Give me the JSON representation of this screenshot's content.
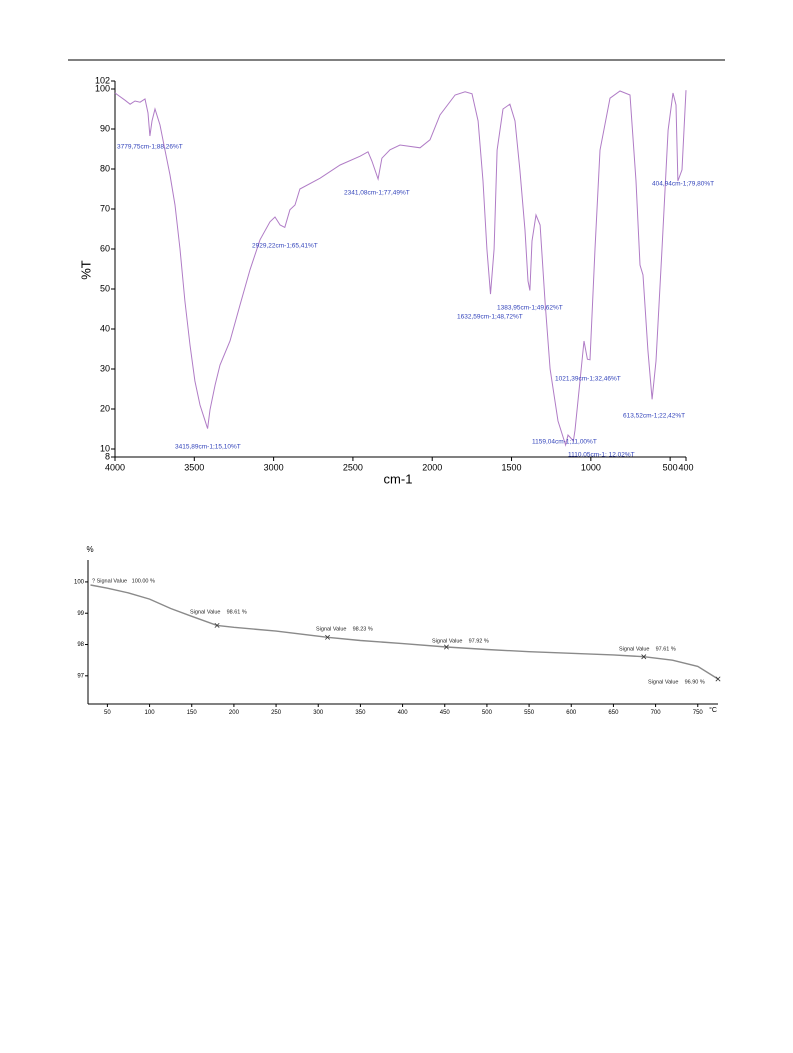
{
  "chart_data": [
    {
      "type": "line",
      "x_label": "cm-1",
      "y_label": "%T",
      "color": "#b07cc6",
      "xlim": [
        4000,
        400
      ],
      "ylim": [
        8,
        102
      ],
      "xticks": [
        4000,
        3500,
        3000,
        2500,
        2000,
        1500,
        1000,
        500,
        400
      ],
      "yticks": [
        8,
        10,
        20,
        30,
        40,
        50,
        60,
        70,
        80,
        90,
        100,
        102
      ],
      "x": [
        4000,
        3937,
        3905,
        3874,
        3842,
        3811,
        3792,
        3779.75,
        3767,
        3748,
        3716,
        3685,
        3653,
        3622,
        3590,
        3559,
        3527,
        3496,
        3464,
        3433,
        3415.89,
        3401,
        3369,
        3338,
        3275,
        3212,
        3149,
        3086,
        3023,
        2991,
        2959,
        2929.22,
        2897,
        2865,
        2834,
        2707,
        2581,
        2455,
        2405,
        2380,
        2341.08,
        2317,
        2266,
        2203,
        2077,
        2014,
        1951,
        1856,
        1793,
        1749,
        1711,
        1680,
        1655,
        1632.59,
        1610,
        1591,
        1554,
        1510,
        1478,
        1447,
        1415,
        1396,
        1383.95,
        1371,
        1346,
        1320,
        1289,
        1257,
        1207,
        1159.04,
        1144,
        1110.05,
        1100,
        1068,
        1043,
        1021.39,
        1005,
        974,
        942,
        879,
        816,
        753,
        715,
        690,
        671,
        640,
        613.52,
        589,
        551,
        513,
        482,
        463,
        451,
        425,
        400
      ],
      "values": [
        99,
        97.2,
        96.2,
        97,
        96.7,
        97.5,
        94,
        88.26,
        92,
        95,
        91,
        84.7,
        78.5,
        71,
        60,
        47,
        36,
        27,
        21,
        17.2,
        15.1,
        19.8,
        26,
        31,
        37,
        46,
        54.8,
        62.3,
        66.8,
        68,
        66,
        65.41,
        69.8,
        71,
        75,
        77.7,
        81,
        83.2,
        84.3,
        82,
        77.49,
        82.7,
        84.8,
        86,
        85.3,
        87.3,
        93.5,
        98.5,
        99.3,
        98.8,
        92,
        77,
        60,
        48.72,
        60,
        84.7,
        95,
        96.2,
        92,
        79.7,
        64.7,
        52,
        49.62,
        62,
        68.5,
        66,
        47,
        30,
        17,
        11,
        13.5,
        12.02,
        14.7,
        27,
        37,
        32.46,
        32.3,
        60,
        84.7,
        97.7,
        99.5,
        98.5,
        77,
        56,
        53.5,
        34.7,
        22.42,
        32,
        60,
        89.7,
        99,
        96,
        77,
        79.8,
        99.7
      ],
      "annotations": [
        "3779,75cm-1;88,26%T",
        "3415,89cm-1;15,10%T",
        "2929,22cm-1;65,41%T",
        "2341,08cm-1;77,49%T",
        "1632,59cm-1;48,72%T",
        "1383,95cm-1;49,62%T",
        "1159,04cm-1;11,00%T",
        "1110,05cm-1; 12,02%T",
        "1021,39cm-1;32,46%T",
        "613,52cm-1;22,42%T",
        "404,94cm-1;79,80%T"
      ]
    },
    {
      "type": "line",
      "x_label": "°C",
      "y_label": "%",
      "color": "#8a8a8a",
      "xlim": [
        27,
        774
      ],
      "ylim": [
        96.1,
        100.7
      ],
      "xticks": [
        50,
        100,
        150,
        200,
        250,
        300,
        350,
        400,
        450,
        500,
        550,
        600,
        650,
        700,
        750
      ],
      "yticks": [
        97,
        98,
        99,
        100
      ],
      "x": [
        30,
        50,
        75,
        100,
        125,
        150,
        180,
        200,
        250,
        311,
        350,
        400,
        452,
        500,
        550,
        600,
        650,
        686,
        720,
        750,
        774
      ],
      "values": [
        99.9,
        99.8,
        99.65,
        99.45,
        99.15,
        98.9,
        98.61,
        98.55,
        98.43,
        98.23,
        98.13,
        98.03,
        97.92,
        97.84,
        97.77,
        97.72,
        97.67,
        97.61,
        97.5,
        97.3,
        96.9
      ],
      "marker_x": [
        180,
        311,
        452,
        686,
        774
      ],
      "marker_values": [
        98.61,
        98.23,
        97.92,
        97.61,
        96.9
      ],
      "annotations": [
        "? Signal Value   100.00 %",
        "Signal Value    98.61 %",
        "Signal Value    98.23 %",
        "Signal Value    97.92 %",
        "Signal Value    97.61 %",
        "Signal Value    96.90 %"
      ]
    }
  ]
}
